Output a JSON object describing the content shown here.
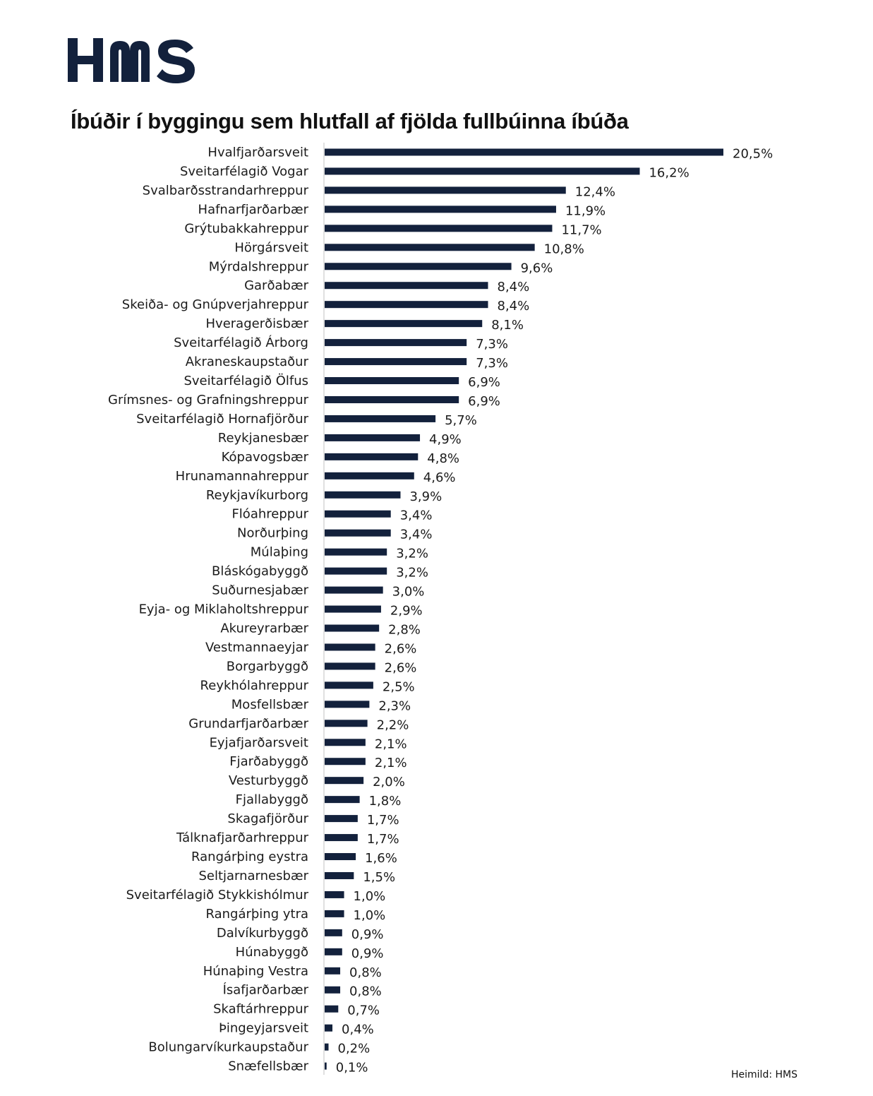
{
  "logo": {
    "text": "HMS",
    "color": "#13213c"
  },
  "title": "Íbúðir í byggingu sem hlutfall af fjölda fullbúinna íbúða",
  "source": "Heimild: HMS",
  "bar_color": "#13213c",
  "chart_data": {
    "type": "bar",
    "orientation": "horizontal",
    "title": "Íbúðir í byggingu sem hlutfall af fjölda fullbúinna íbúða",
    "xlabel": "",
    "ylabel": "",
    "grid": false,
    "legend": "none",
    "xlim": [
      0,
      20.5
    ],
    "categories": [
      "Hvalfjarðarsveit",
      "Sveitarfélagið Vogar",
      "Svalbarðsstrandarhreppur",
      "Hafnarfjarðarbær",
      "Grýtubakkahreppur",
      "Hörgársveit",
      "Mýrdalshreppur",
      "Garðabær",
      "Skeiða- og Gnúpverjahreppur",
      "Hveragerðisbær",
      "Sveitarfélagið Árborg",
      "Akraneskaupstaður",
      "Sveitarfélagið Ölfus",
      "Grímsnes- og Grafningshreppur",
      "Sveitarfélagið Hornafjörður",
      "Reykjanesbær",
      "Kópavogsbær",
      "Hrunamannahreppur",
      "Reykjavíkurborg",
      "Flóahreppur",
      "Norðurþing",
      "Múlaþing",
      "Bláskógabyggð",
      "Suðurnesjabær",
      "Eyja- og Miklaholtshreppur",
      "Akureyrarbær",
      "Vestmannaeyjar",
      "Borgarbyggð",
      "Reykhólahreppur",
      "Mosfellsbær",
      "Grundarfjarðarbær",
      "Eyjafjarðarsveit",
      "Fjarðabyggð",
      "Vesturbyggð",
      "Fjallabyggð",
      "Skagafjörður",
      "Tálknafjarðarhreppur",
      "Rangárþing eystra",
      "Seltjarnarnesbær",
      "Sveitarfélagið Stykkishólmur",
      "Rangárþing ytra",
      "Dalvíkurbyggð",
      "Húnabyggð",
      "Húnaþing Vestra",
      "Ísafjarðarbær",
      "Skaftárhreppur",
      "Þingeyjarsveit",
      "Bolungarvíkurkaupstaður",
      "Snæfellsbær"
    ],
    "values": [
      20.5,
      16.2,
      12.4,
      11.9,
      11.7,
      10.8,
      9.6,
      8.4,
      8.4,
      8.1,
      7.3,
      7.3,
      6.9,
      6.9,
      5.7,
      4.9,
      4.8,
      4.6,
      3.9,
      3.4,
      3.4,
      3.2,
      3.2,
      3.0,
      2.9,
      2.8,
      2.6,
      2.6,
      2.5,
      2.3,
      2.2,
      2.1,
      2.1,
      2.0,
      1.8,
      1.7,
      1.7,
      1.6,
      1.5,
      1.0,
      1.0,
      0.9,
      0.9,
      0.8,
      0.8,
      0.7,
      0.4,
      0.2,
      0.1
    ],
    "value_labels": [
      "20,5%",
      "16,2%",
      "12,4%",
      "11,9%",
      "11,7%",
      "10,8%",
      "9,6%",
      "8,4%",
      "8,4%",
      "8,1%",
      "7,3%",
      "7,3%",
      "6,9%",
      "6,9%",
      "5,7%",
      "4,9%",
      "4,8%",
      "4,6%",
      "3,9%",
      "3,4%",
      "3,4%",
      "3,2%",
      "3,2%",
      "3,0%",
      "2,9%",
      "2,8%",
      "2,6%",
      "2,6%",
      "2,5%",
      "2,3%",
      "2,2%",
      "2,1%",
      "2,1%",
      "2,0%",
      "1,8%",
      "1,7%",
      "1,7%",
      "1,6%",
      "1,5%",
      "1,0%",
      "1,0%",
      "0,9%",
      "0,9%",
      "0,8%",
      "0,8%",
      "0,7%",
      "0,4%",
      "0,2%",
      "0,1%"
    ]
  }
}
